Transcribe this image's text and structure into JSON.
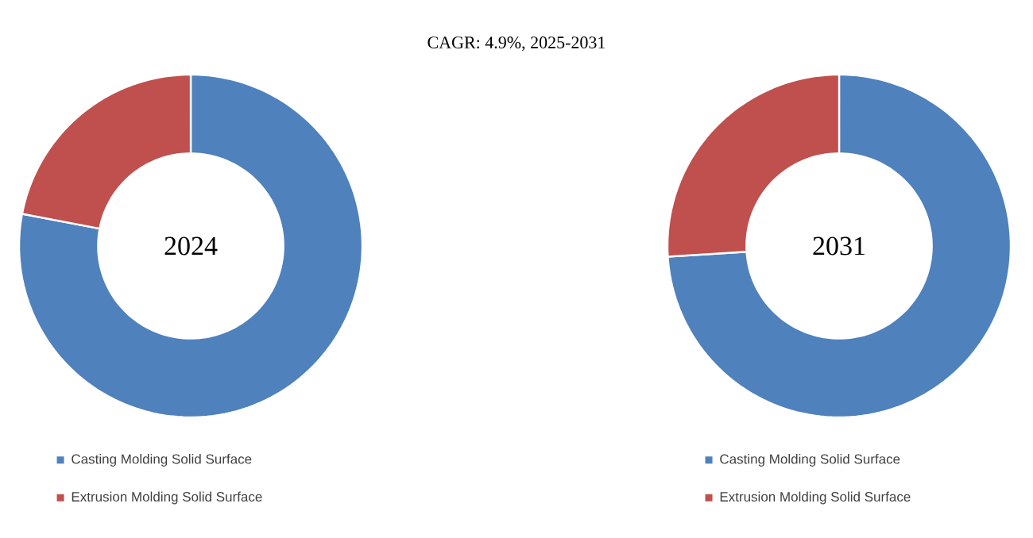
{
  "chart_data": [
    {
      "type": "donut",
      "title": "CAGR:  4.9%, 2025-2031",
      "subtitle": "2024",
      "categories": [
        "Casting Molding Solid Surface",
        "Extrusion Molding Solid Surface"
      ],
      "values": [
        78,
        22
      ],
      "colors": [
        "#4f81bd",
        "#c0504d"
      ],
      "legend": "bottom"
    },
    {
      "type": "donut",
      "subtitle": "2031",
      "categories": [
        "Casting Molding Solid Surface",
        "Extrusion Molding Solid Surface"
      ],
      "values": [
        74,
        26
      ],
      "colors": [
        "#4f81bd",
        "#c0504d"
      ],
      "legend": "bottom"
    }
  ]
}
